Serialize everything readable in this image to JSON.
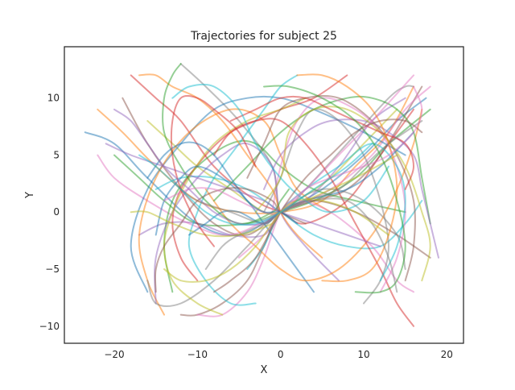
{
  "chart_data": {
    "type": "line",
    "title": "Trajectories for subject 25",
    "xlabel": "X",
    "ylabel": "Y",
    "xlim": [
      -26,
      22
    ],
    "ylim": [
      -11.5,
      14.5
    ],
    "x_ticks": [
      -20,
      -10,
      0,
      10,
      20
    ],
    "y_ticks": [
      -10,
      -5,
      0,
      5,
      10
    ],
    "grid": false,
    "legend": "none",
    "line_alpha": 0.5,
    "palette": [
      "#1f77b4",
      "#ff7f0e",
      "#2ca02c",
      "#d62728",
      "#9467bd",
      "#8c564b",
      "#e377c2",
      "#7f7f7f",
      "#bcbd22",
      "#17becf"
    ],
    "series": [
      {
        "x": [
          -23.5,
          -20,
          -16,
          -10,
          -5,
          0,
          5,
          10,
          14,
          17.5
        ],
        "y": [
          7,
          6,
          3,
          -1,
          -2,
          0,
          2,
          5,
          8,
          10
        ]
      },
      {
        "x": [
          -22,
          -19,
          -15,
          -10,
          -5,
          0,
          5,
          9,
          13,
          16
        ],
        "y": [
          9,
          7,
          4,
          1,
          0,
          0,
          1,
          4,
          7,
          11
        ]
      },
      {
        "x": [
          -20,
          -17,
          -14,
          -10,
          -4,
          0,
          4,
          9,
          13,
          18
        ],
        "y": [
          5,
          3,
          1,
          -1,
          -1,
          0,
          1,
          3,
          6,
          9
        ]
      },
      {
        "x": [
          -18,
          -15,
          -12,
          -8,
          -3,
          0,
          3,
          8,
          12,
          16
        ],
        "y": [
          12,
          10,
          8,
          4,
          1,
          0,
          -1,
          1,
          5,
          9
        ]
      },
      {
        "x": [
          -17,
          -14,
          -10,
          -6,
          -2,
          0,
          3,
          7,
          11,
          15
        ],
        "y": [
          -2,
          -1,
          -1,
          -2,
          -2,
          0,
          1,
          4,
          8,
          10
        ]
      },
      {
        "x": [
          -19,
          -16,
          -12,
          -8,
          -4,
          0,
          4,
          8,
          12,
          17
        ],
        "y": [
          10,
          6,
          2,
          -1,
          -2,
          0,
          1,
          2,
          5,
          11
        ]
      },
      {
        "x": [
          -22,
          -20,
          -16,
          -11,
          -6,
          0,
          6,
          11,
          15,
          18
        ],
        "y": [
          5,
          3,
          1,
          -1,
          -2,
          0,
          2,
          5,
          9,
          11
        ]
      },
      {
        "x": [
          -12,
          -9,
          -5,
          -1,
          0,
          3,
          8,
          13,
          15,
          16
        ],
        "y": [
          13,
          11,
          8,
          4,
          0,
          2,
          6,
          10,
          11,
          11
        ]
      },
      {
        "x": [
          -16,
          -13,
          -10,
          -6,
          -2,
          0,
          2,
          6,
          10,
          14
        ],
        "y": [
          8,
          6,
          4,
          2,
          0,
          0,
          1,
          3,
          6,
          9
        ]
      },
      {
        "x": [
          -15,
          -12,
          -8,
          -4,
          0,
          4,
          8,
          12,
          15,
          17
        ],
        "y": [
          2,
          3,
          3,
          2,
          0,
          -2,
          -3,
          -3,
          -1,
          1
        ]
      },
      {
        "x": [
          -16,
          -18,
          -16,
          -12,
          -8,
          -4,
          0,
          4,
          10,
          15
        ],
        "y": [
          -7,
          -3,
          2,
          6,
          9,
          10,
          10,
          9,
          7,
          5
        ]
      },
      {
        "x": [
          -14,
          -16,
          -17,
          -15,
          -11,
          -6,
          -2,
          0,
          2,
          6
        ],
        "y": [
          -9,
          -6,
          -2,
          3,
          7,
          9,
          8,
          5,
          2,
          0
        ]
      },
      {
        "x": [
          -13,
          -14,
          -13,
          -10,
          -6,
          -3,
          0,
          4,
          9,
          15
        ],
        "y": [
          -7,
          -3,
          1,
          4,
          6,
          6,
          4,
          2,
          1,
          0
        ]
      },
      {
        "x": [
          -10,
          -12,
          -13,
          -12,
          -9,
          -6,
          -3,
          0,
          4,
          8
        ],
        "y": [
          -6,
          -4,
          -1,
          2,
          5,
          7,
          8,
          9,
          10,
          12
        ]
      },
      {
        "x": [
          -15,
          -15,
          -13,
          -10,
          -7,
          -4,
          -1,
          0,
          3,
          7
        ],
        "y": [
          -8,
          -4,
          0,
          3,
          5,
          6,
          4,
          0,
          -3,
          -6
        ]
      },
      {
        "x": [
          -12,
          -10,
          -7,
          -4,
          -2,
          0,
          4,
          9,
          14,
          18
        ],
        "y": [
          -9,
          -9,
          -8,
          -6,
          -3,
          0,
          1,
          0,
          -2,
          -4
        ]
      },
      {
        "x": [
          -10,
          -7,
          -4,
          -2,
          0,
          2,
          6,
          11,
          14,
          16
        ],
        "y": [
          -9,
          -9,
          -7,
          -4,
          0,
          1,
          0,
          -3,
          -6,
          -7
        ]
      },
      {
        "x": [
          -16,
          -15,
          -12,
          -8,
          -4,
          0,
          5,
          10,
          14,
          15
        ],
        "y": [
          -6,
          -8,
          -8,
          -6,
          -3,
          0,
          2,
          1,
          -2,
          -5
        ]
      },
      {
        "x": [
          -7,
          -10,
          -13,
          -14,
          -13,
          -11,
          -8,
          -4,
          0,
          3
        ],
        "y": [
          -9,
          -8,
          -6,
          -3,
          0,
          3,
          6,
          8,
          9,
          10
        ]
      },
      {
        "x": [
          -3,
          -6,
          -9,
          -11,
          -10,
          -8,
          -5,
          -2,
          0,
          2
        ],
        "y": [
          -8,
          -8,
          -6,
          -3,
          0,
          3,
          6,
          9,
          11,
          12
        ]
      },
      {
        "x": [
          4,
          2,
          0,
          -2,
          -4,
          -7,
          -10,
          -12,
          -14,
          -15
        ],
        "y": [
          -7,
          -5,
          -3,
          -1,
          1,
          3,
          4,
          3,
          1,
          -2
        ]
      },
      {
        "x": [
          17,
          16,
          14,
          11,
          7,
          3,
          0,
          -3,
          -6,
          -9
        ],
        "y": [
          9,
          6,
          2,
          -2,
          -5,
          -6,
          -5,
          -3,
          -1,
          2
        ]
      },
      {
        "x": [
          18,
          17,
          16,
          14,
          11,
          8,
          4,
          0,
          -4,
          -8
        ],
        "y": [
          -1,
          3,
          7,
          9,
          10,
          10,
          9,
          7,
          4,
          1
        ]
      },
      {
        "x": [
          16,
          14,
          12,
          9,
          6,
          3,
          0,
          -3,
          -6,
          -8
        ],
        "y": [
          -10,
          -8,
          -5,
          -1,
          3,
          6,
          8,
          8,
          7,
          5
        ]
      },
      {
        "x": [
          19,
          18,
          17,
          16,
          13,
          10,
          6,
          3,
          0,
          -2
        ],
        "y": [
          -4,
          -1,
          2,
          5,
          7,
          8,
          8,
          7,
          5,
          2
        ]
      },
      {
        "x": [
          15,
          16,
          16,
          14,
          11,
          7,
          3,
          0,
          -2,
          -4
        ],
        "y": [
          -6,
          -3,
          1,
          5,
          8,
          10,
          10,
          9,
          6,
          3
        ]
      },
      {
        "x": [
          12,
          14,
          15,
          14,
          12,
          9,
          5,
          2,
          0,
          -1
        ],
        "y": [
          -7,
          -4,
          0,
          4,
          7,
          9,
          10,
          8,
          4,
          0
        ]
      },
      {
        "x": [
          10,
          12,
          13,
          12,
          10,
          7,
          4,
          2,
          0,
          -2
        ],
        "y": [
          -8,
          -6,
          -3,
          1,
          5,
          8,
          9,
          7,
          3,
          0
        ]
      },
      {
        "x": [
          17,
          18,
          17,
          15,
          12,
          8,
          4,
          1,
          0,
          -3
        ],
        "y": [
          -6,
          -3,
          0,
          4,
          7,
          9,
          9,
          7,
          3,
          0
        ]
      },
      {
        "x": [
          -4,
          -2,
          0,
          3,
          7,
          11,
          14,
          15,
          14,
          12
        ],
        "y": [
          -5,
          -3,
          0,
          2,
          4,
          6,
          4,
          1,
          -3,
          -6
        ]
      },
      {
        "x": [
          -11,
          -9,
          -7,
          -5,
          -2,
          0,
          3,
          8,
          12,
          16
        ],
        "y": [
          -2,
          -1,
          0,
          0,
          -1,
          0,
          1,
          2,
          4,
          7
        ]
      },
      {
        "x": [
          -17,
          -15,
          -13,
          -10,
          -7,
          -4,
          -1,
          0,
          2,
          5
        ],
        "y": [
          12,
          12,
          11,
          10,
          8,
          5,
          2,
          0,
          -2,
          -4
        ]
      },
      {
        "x": [
          -12,
          -13,
          -14,
          -14,
          -12,
          -9,
          -5,
          -1,
          0,
          1
        ],
        "y": [
          13,
          12,
          10,
          7,
          4,
          1,
          -1,
          0,
          1,
          2
        ]
      },
      {
        "x": [
          -6,
          -3,
          0,
          3,
          6,
          9,
          12,
          15,
          16,
          15
        ],
        "y": [
          8,
          9,
          10,
          10,
          9,
          8,
          7,
          6,
          4,
          2
        ]
      },
      {
        "x": [
          -21,
          -18,
          -14,
          -10,
          -6,
          -2,
          0,
          4,
          8,
          12
        ],
        "y": [
          6,
          5,
          4,
          3,
          2,
          1,
          0,
          -1,
          -2,
          -3
        ]
      },
      {
        "x": [
          -15,
          -15,
          -14,
          -12,
          -10,
          -7,
          -4,
          -1,
          0,
          3
        ],
        "y": [
          -7,
          -5,
          -3,
          -1,
          1,
          2,
          2,
          1,
          0,
          -1
        ]
      },
      {
        "x": [
          -14,
          -11,
          -8,
          -5,
          -2,
          0,
          3,
          7,
          11,
          16
        ],
        "y": [
          1,
          2,
          2,
          1,
          0,
          0,
          2,
          5,
          8,
          12
        ]
      },
      {
        "x": [
          -9,
          -7,
          -5,
          -2,
          0,
          3,
          7,
          10,
          13,
          17
        ],
        "y": [
          -5,
          -3,
          -2,
          -1,
          0,
          1,
          2,
          4,
          6,
          8
        ]
      },
      {
        "x": [
          -18,
          -16,
          -13,
          -9,
          -5,
          -1,
          0,
          3,
          9,
          14
        ],
        "y": [
          0,
          0,
          -1,
          -2,
          -2,
          -1,
          0,
          1,
          3,
          5
        ]
      },
      {
        "x": [
          -13,
          -11,
          -8,
          -5,
          -3,
          0,
          3,
          6,
          10,
          13
        ],
        "y": [
          10,
          11,
          11,
          9,
          6,
          3,
          1,
          0,
          1,
          4
        ]
      },
      {
        "x": [
          -16,
          -14,
          -12,
          -10,
          -8,
          -6,
          -4,
          -2,
          0,
          2
        ],
        "y": [
          3,
          5,
          6,
          6,
          5,
          3,
          1,
          0,
          0,
          -1
        ]
      },
      {
        "x": [
          2,
          5,
          8,
          11,
          13,
          14,
          13,
          11,
          8,
          5
        ],
        "y": [
          12,
          12,
          11,
          9,
          6,
          2,
          -2,
          -5,
          -6,
          -6
        ]
      },
      {
        "x": [
          -2,
          1,
          5,
          9,
          12,
          14,
          15,
          14,
          12,
          9
        ],
        "y": [
          11,
          11,
          10,
          8,
          5,
          1,
          -3,
          -6,
          -7,
          -7
        ]
      },
      {
        "x": [
          -3,
          -5,
          -8,
          -10,
          -12,
          -13,
          -13,
          -12,
          -10,
          -8
        ],
        "y": [
          4,
          7,
          9,
          10,
          10,
          8,
          5,
          2,
          -1,
          -3
        ]
      },
      {
        "x": [
          -20,
          -18,
          -16,
          -14,
          -11,
          -8,
          -5,
          -2,
          0,
          3
        ],
        "y": [
          9,
          8,
          6,
          4,
          2,
          0,
          -1,
          -1,
          0,
          1
        ]
      },
      {
        "x": [
          -8,
          -6,
          -3,
          0,
          3,
          6,
          9,
          12,
          15,
          17
        ],
        "y": [
          -7,
          -6,
          -4,
          0,
          3,
          5,
          7,
          8,
          8,
          7
        ]
      },
      {
        "x": [
          -5,
          -2,
          0,
          3,
          6,
          10,
          13,
          16,
          17,
          16
        ],
        "y": [
          -4,
          -2,
          0,
          2,
          3,
          4,
          5,
          7,
          9,
          11
        ]
      },
      {
        "x": [
          -12,
          -10,
          -6,
          -2,
          0,
          4,
          8,
          11,
          13,
          14
        ],
        "y": [
          2,
          1,
          0,
          -1,
          0,
          1,
          1,
          -1,
          -4,
          -7
        ]
      },
      {
        "x": [
          -14,
          -12,
          -9,
          -6,
          -3,
          0,
          2,
          5,
          9,
          13
        ],
        "y": [
          -5,
          -6,
          -6,
          -5,
          -3,
          0,
          1,
          1,
          0,
          -2
        ]
      },
      {
        "x": [
          -17,
          -15,
          -12,
          -9,
          -6,
          -3,
          0,
          4,
          8,
          11
        ],
        "y": [
          5,
          4,
          2,
          0,
          -1,
          -1,
          0,
          2,
          4,
          6
        ]
      }
    ]
  }
}
